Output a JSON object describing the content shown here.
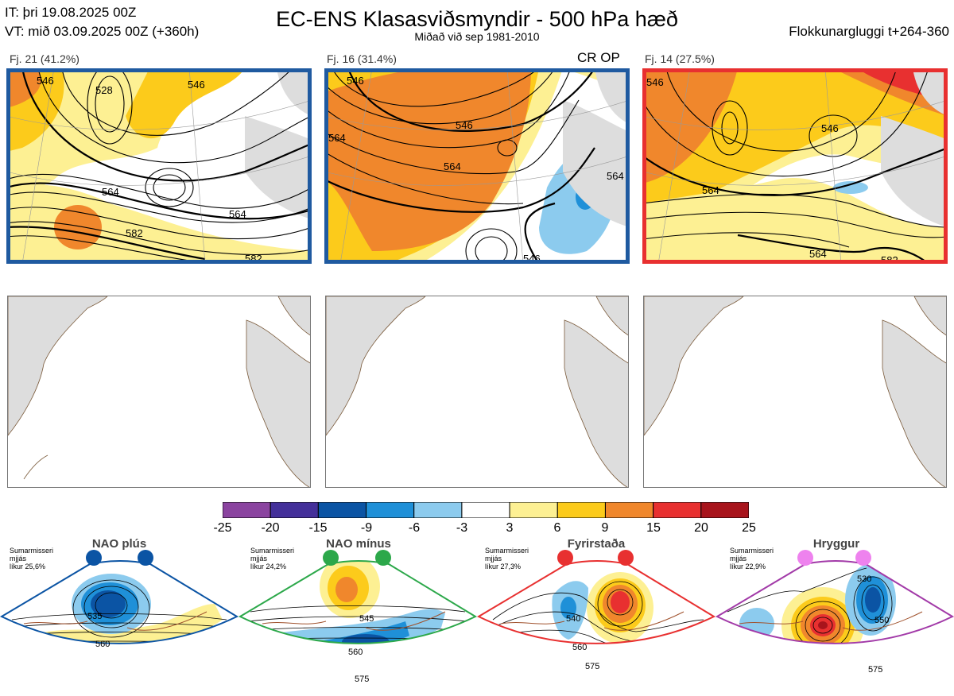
{
  "header": {
    "init_time": "IT: þri 19.08.2025 00Z",
    "valid_time": "VT: mið 03.09.2025 00Z  (+360h)",
    "title": "EC-ENS Klasasviðsmyndir - 500 hPa hæð",
    "subtitle": "Miðað við sep 1981-2010",
    "window": "Flokkunargluggi t+264-360"
  },
  "clusters": [
    {
      "label": "Fj. 21 (41.2%)",
      "tag": "",
      "frame_color": "#1f5aa0",
      "contour_labels": [
        "546",
        "564",
        "582",
        "546",
        "564",
        "582",
        "528"
      ]
    },
    {
      "label": "Fj. 16 (31.4%)",
      "tag": "CR OP",
      "frame_color": "#1f5aa0",
      "contour_labels": [
        "546",
        "564",
        "546",
        "564",
        "564",
        "546"
      ]
    },
    {
      "label": "Fj. 14 (27.5%)",
      "tag": "",
      "frame_color": "#e83030",
      "contour_labels": [
        "546",
        "564",
        "564",
        "582",
        "546"
      ]
    }
  ],
  "colorbar": {
    "ticks": [
      "-25",
      "-20",
      "-15",
      "-9",
      "-6",
      "-3",
      "3",
      "6",
      "9",
      "15",
      "20",
      "25"
    ],
    "colors": [
      "#8b44a0",
      "#44309a",
      "#0b54a4",
      "#1f90d8",
      "#8ccbee",
      "#ffffff",
      "#fdf093",
      "#fccb1b",
      "#f0872c",
      "#e83030",
      "#a8141c"
    ]
  },
  "regimes": [
    {
      "name": "NAO plús",
      "season": "Sumarmisseri",
      "prob_label": "mjjás",
      "likelihood": "líkur 25,6%",
      "accent": "#0b54a4",
      "contour_labels": [
        "535",
        "560"
      ]
    },
    {
      "name": "NAO mínus",
      "season": "Sumarmisseri",
      "prob_label": "mjjás",
      "likelihood": "líkur 24,2%",
      "accent": "#2ca84a",
      "contour_labels": [
        "545",
        "560",
        "575"
      ]
    },
    {
      "name": "Fyrirstaða",
      "season": "Sumarmisseri",
      "prob_label": "mjjás",
      "likelihood": "líkur 27,3%",
      "accent": "#e83030",
      "contour_labels": [
        "540",
        "560",
        "575"
      ]
    },
    {
      "name": "Hryggur",
      "season": "Sumarmisseri",
      "prob_label": "mjjás",
      "likelihood": "líkur 22,9%",
      "accent": "#a23aa8",
      "contour_labels": [
        "530",
        "550",
        "575"
      ]
    }
  ]
}
